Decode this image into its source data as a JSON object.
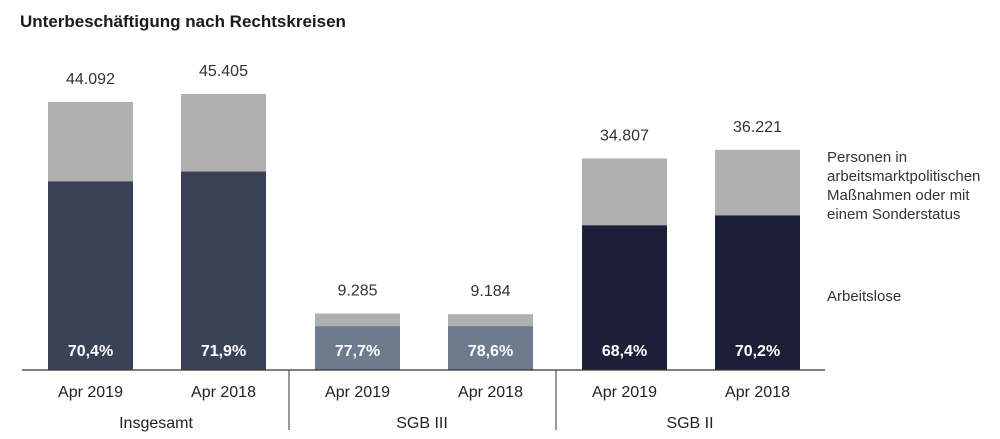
{
  "title": "Unterbeschäftigung nach Rechtskreisen",
  "colors": {
    "top": "#b0b0b0",
    "insgesamt": "#3a4258",
    "sgb3": "#6e7a8e",
    "sgb2": "#1b2038",
    "axis": "#333333",
    "label_inside": "#ffffff"
  },
  "legend": {
    "top_label": "Personen in arbeitsmarktpolitischen Maßnahmen oder mit einem Sonderstatus",
    "bottom_label": "Arbeitslose"
  },
  "chart_data": {
    "type": "bar",
    "stacked": true,
    "ylim": [
      0,
      46000
    ],
    "groups": [
      {
        "name": "Insgesamt",
        "bars": [
          {
            "label": "Apr 2019",
            "total": 44092,
            "total_label": "44.092",
            "share_pct": 70.4,
            "share_label": "70,4%"
          },
          {
            "label": "Apr 2018",
            "total": 45405,
            "total_label": "45.405",
            "share_pct": 71.9,
            "share_label": "71,9%"
          }
        ]
      },
      {
        "name": "SGB III",
        "bars": [
          {
            "label": "Apr 2019",
            "total": 9285,
            "total_label": "9.285",
            "share_pct": 77.7,
            "share_label": "77,7%"
          },
          {
            "label": "Apr 2018",
            "total": 9184,
            "total_label": "9.184",
            "share_pct": 78.6,
            "share_label": "78,6%"
          }
        ]
      },
      {
        "name": "SGB II",
        "bars": [
          {
            "label": "Apr 2019",
            "total": 34807,
            "total_label": "34.807",
            "share_pct": 68.4,
            "share_label": "68,4%"
          },
          {
            "label": "Apr 2018",
            "total": 36221,
            "total_label": "36.221",
            "share_pct": 70.2,
            "share_label": "70,2%"
          }
        ]
      }
    ]
  }
}
